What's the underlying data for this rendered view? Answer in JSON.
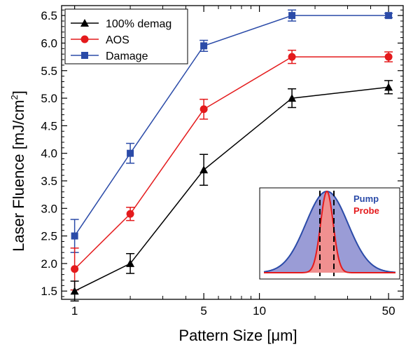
{
  "chart_data": {
    "type": "line",
    "x_scale": "log",
    "xlabel": "Pattern Size [",
    "xlabel_unit": "μm",
    "xlabel_close": "]",
    "ylabel": "Laser Fluence [mJ/cm",
    "ylabel_sup": "2",
    "ylabel_close": "]",
    "xlim": [
      0.85,
      60
    ],
    "ylim": [
      1.35,
      6.68
    ],
    "x_ticks": [
      1,
      5,
      10,
      50
    ],
    "x_tick_labels": [
      "1",
      "5",
      "10",
      "50"
    ],
    "y_ticks": [
      1.5,
      2.0,
      2.5,
      3.0,
      3.5,
      4.0,
      4.5,
      5.0,
      5.5,
      6.0,
      6.5
    ],
    "y_tick_labels": [
      "1.5",
      "2.0",
      "2.5",
      "3.0",
      "3.5",
      "4.0",
      "4.5",
      "5.0",
      "5.5",
      "6.0",
      "6.5"
    ],
    "x": [
      1,
      2,
      5,
      15,
      50
    ],
    "legend_position": "top-left",
    "series": [
      {
        "name": "100% demag",
        "color": "#000000",
        "marker": "triangle",
        "values": [
          1.5,
          2.0,
          3.7,
          5.0,
          5.2
        ],
        "errors": [
          0.18,
          0.18,
          0.28,
          0.17,
          0.12
        ]
      },
      {
        "name": "AOS",
        "color": "#e41a1c",
        "marker": "circle",
        "values": [
          1.9,
          2.9,
          4.8,
          5.75,
          5.75
        ],
        "errors": [
          0.38,
          0.12,
          0.18,
          0.12,
          0.09
        ]
      },
      {
        "name": "Damage",
        "color": "#2b4ba8",
        "marker": "square",
        "values": [
          2.5,
          4.0,
          5.95,
          6.5,
          6.5
        ],
        "errors": [
          0.3,
          0.18,
          0.1,
          0.1,
          0.04
        ]
      }
    ],
    "inset": {
      "labels": [
        {
          "text": "Pump",
          "color": "#2b4ba8"
        },
        {
          "text": "Probe",
          "color": "#e41a1c"
        }
      ],
      "pump_color": "#2b4ba8",
      "pump_fill": "#9a9cd6",
      "probe_color": "#e41a1c",
      "probe_fill": "#f09090"
    }
  }
}
